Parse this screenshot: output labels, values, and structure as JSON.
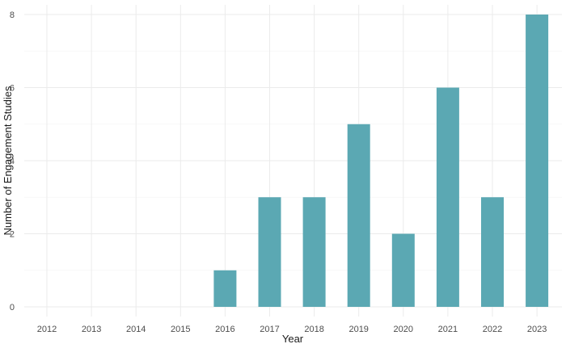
{
  "chart_data": {
    "type": "bar",
    "title": "",
    "xlabel": "Year",
    "ylabel": "Number of Engagement Studies",
    "categories": [
      "2012",
      "2013",
      "2014",
      "2015",
      "2016",
      "2017",
      "2018",
      "2019",
      "2020",
      "2021",
      "2022",
      "2023"
    ],
    "values": [
      0,
      0,
      0,
      0,
      1,
      3,
      3,
      5,
      2,
      6,
      3,
      8
    ],
    "ylim": [
      0,
      8
    ],
    "yticks": [
      0,
      2,
      4,
      6,
      8
    ],
    "grid": true,
    "legend": "none",
    "bar_color": "#5ba8b3"
  }
}
